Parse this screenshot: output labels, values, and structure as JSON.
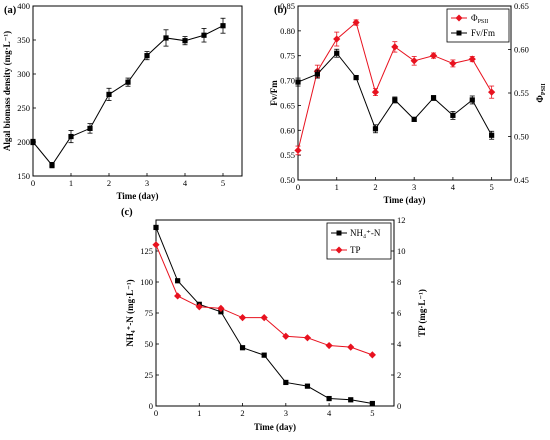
{
  "chart_data": [
    {
      "panel_label": "(a)",
      "type": "line",
      "xlabel": "Time (day)",
      "ylabel": "Algal biomass density (mg·L⁻¹)",
      "xlim": [
        0,
        5.5
      ],
      "ylim": [
        150,
        400
      ],
      "xticks": [
        0,
        1,
        2,
        3,
        4,
        5
      ],
      "yticks": [
        150,
        200,
        250,
        300,
        350,
        400
      ],
      "grid": false,
      "series": [
        {
          "x": [
            0,
            0.5,
            1,
            1.5,
            2,
            2.5,
            3,
            3.5,
            4,
            4.5,
            5
          ],
          "values": [
            200,
            166,
            208,
            220,
            270,
            288,
            327,
            353,
            349,
            357,
            371
          ],
          "errors": [
            4,
            4,
            9,
            7,
            9,
            6,
            6,
            12,
            6,
            10,
            11
          ],
          "color": "#000000",
          "marker": "square"
        }
      ]
    },
    {
      "panel_label": "(b)",
      "type": "line",
      "xlabel": "Time (day)",
      "ylabel": "Fv/Fm",
      "y2label": "Φ_PSII",
      "xlim": [
        0,
        5.5
      ],
      "ylim": [
        0.5,
        0.85
      ],
      "y2lim": [
        0.45,
        0.65
      ],
      "xticks": [
        0,
        1,
        2,
        3,
        4,
        5
      ],
      "yticks": [
        "0.50",
        "0.55",
        "0.60",
        "0.65",
        "0.70",
        "0.75",
        "0.80",
        "0.85"
      ],
      "y2ticks": [
        "0.45",
        "0.50",
        "0.55",
        "0.60",
        "0.65"
      ],
      "legend_position": "top-right",
      "series": [
        {
          "name": "Φ_PSII",
          "axis": "right",
          "x": [
            0,
            0.5,
            1,
            1.5,
            2,
            2.5,
            3,
            3.5,
            4,
            4.5,
            5
          ],
          "values": [
            0.484,
            0.575,
            0.612,
            0.631,
            0.551,
            0.603,
            0.587,
            0.593,
            0.584,
            0.589,
            0.551
          ],
          "errors": [
            0.005,
            0.007,
            0.008,
            0.003,
            0.004,
            0.006,
            0.005,
            0.003,
            0.004,
            0.003,
            0.007
          ],
          "color": "#e8121f",
          "marker": "diamond"
        },
        {
          "name": "Fv/Fm",
          "axis": "left",
          "x": [
            0,
            0.5,
            1,
            1.5,
            2,
            2.5,
            3,
            3.5,
            4,
            4.5,
            5
          ],
          "values": [
            0.697,
            0.713,
            0.755,
            0.706,
            0.603,
            0.661,
            0.622,
            0.665,
            0.63,
            0.661,
            0.59
          ],
          "errors": [
            0.008,
            0.008,
            0.008,
            0.004,
            0.008,
            0.006,
            0.004,
            0.005,
            0.008,
            0.008,
            0.008
          ],
          "color": "#000000",
          "marker": "square"
        }
      ]
    },
    {
      "panel_label": "(c)",
      "type": "line",
      "xlabel": "Time (day)",
      "ylabel": "NH₄⁺-N (mg·L⁻¹)",
      "y2label": "TP (mg·L⁻¹)",
      "xlim": [
        0,
        5.5
      ],
      "ylim": [
        0,
        150
      ],
      "y2lim": [
        0,
        12
      ],
      "xticks": [
        0,
        1,
        2,
        3,
        4,
        5
      ],
      "yticks": [
        0,
        25,
        50,
        75,
        100,
        125
      ],
      "y2ticks": [
        0,
        2,
        4,
        6,
        8,
        10,
        12
      ],
      "legend_position": "top-right",
      "series": [
        {
          "name": "NH₄⁺-N",
          "axis": "left",
          "x": [
            0,
            0.5,
            1,
            1.5,
            2,
            2.5,
            3,
            3.5,
            4,
            4.5,
            5
          ],
          "values": [
            144,
            101,
            82,
            76,
            47,
            41,
            19,
            16,
            6,
            5,
            2
          ],
          "color": "#000000",
          "marker": "square"
        },
        {
          "name": "TP",
          "axis": "right",
          "x": [
            0,
            0.5,
            1,
            1.5,
            2,
            2.5,
            3,
            3.5,
            4,
            4.5,
            5
          ],
          "values": [
            10.4,
            7.1,
            6.4,
            6.3,
            5.7,
            5.7,
            4.5,
            4.4,
            3.9,
            3.8,
            3.3
          ],
          "color": "#e8121f",
          "marker": "diamond"
        }
      ]
    }
  ]
}
